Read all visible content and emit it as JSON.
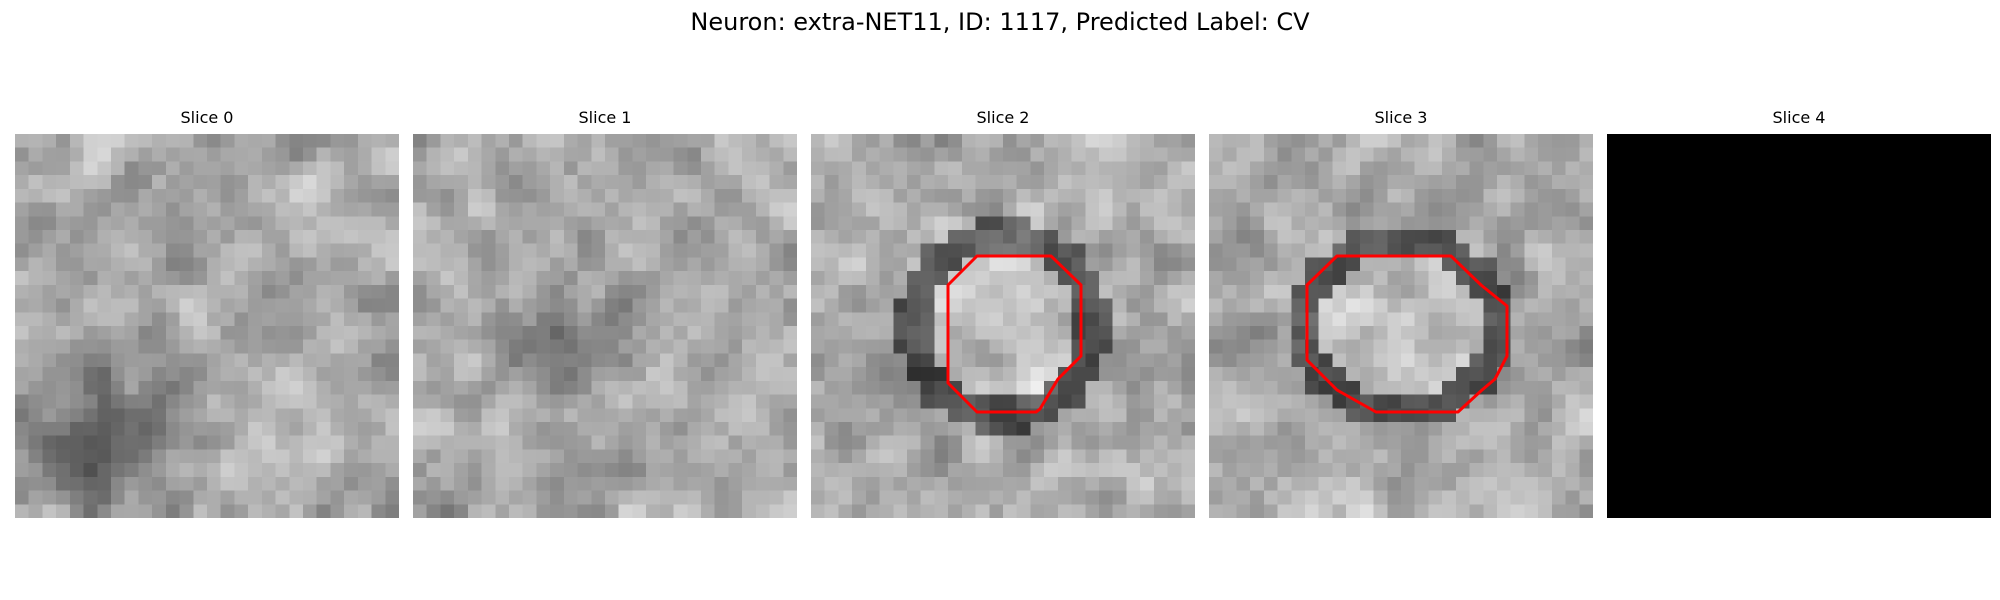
{
  "figure": {
    "title": "Neuron: extra-NET11, ID: 1117, Predicted Label: CV",
    "contour_color": "#ff0000"
  },
  "slices": [
    {
      "title": "Slice 0",
      "contour": false,
      "blank": false
    },
    {
      "title": "Slice 1",
      "contour": false,
      "blank": false
    },
    {
      "title": "Slice 2",
      "contour": true,
      "blank": false
    },
    {
      "title": "Slice 3",
      "contour": true,
      "blank": false
    },
    {
      "title": "Slice 4",
      "contour": false,
      "blank": true
    }
  ]
}
